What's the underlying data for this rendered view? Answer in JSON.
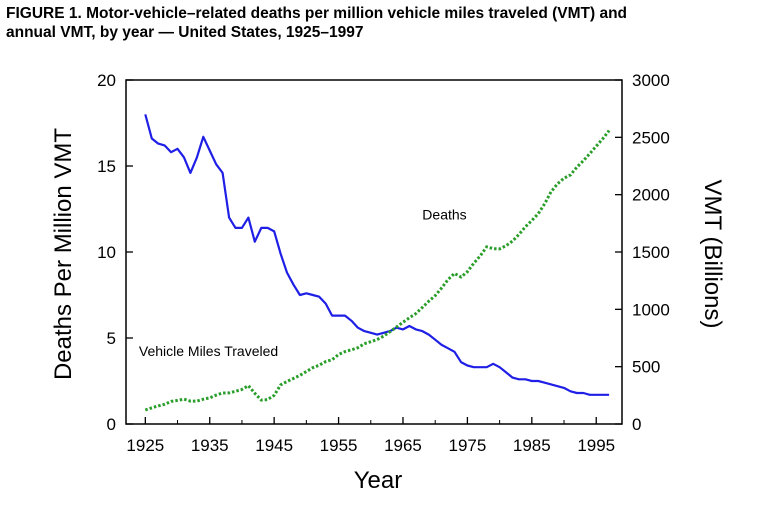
{
  "figure": {
    "title_line1": "FIGURE 1. Motor-vehicle–related deaths per million vehicle miles traveled (VMT) and",
    "title_line2": "annual VMT, by year — United States, 1925–1997"
  },
  "chart_data": {
    "type": "line",
    "title": "FIGURE 1. Motor-vehicle–related deaths per million vehicle miles traveled (VMT) and annual VMT, by year — United States, 1925–1997",
    "xlabel": "Year",
    "ylabel_left": "Deaths Per Million VMT",
    "ylabel_right": "VMT (Billions)",
    "xlim": [
      1922,
      1999
    ],
    "ylim_left": [
      0,
      20
    ],
    "ylim_right": [
      0,
      3000
    ],
    "x_ticks": [
      1925,
      1935,
      1945,
      1955,
      1965,
      1975,
      1985,
      1995
    ],
    "x_tick_labels": [
      "1925",
      "1935",
      "1945",
      "1955",
      "1965",
      "1975",
      "1985",
      "1995"
    ],
    "y_left_ticks": [
      0,
      5,
      10,
      15,
      20
    ],
    "y_left_tick_labels": [
      "0",
      "5",
      "10",
      "15",
      "20"
    ],
    "y_right_ticks": [
      0,
      500,
      1000,
      1500,
      2000,
      2500,
      3000
    ],
    "y_right_tick_labels": [
      "0",
      "500",
      "1000",
      "1500",
      "2000",
      "2500",
      "3000"
    ],
    "grid": false,
    "series": [
      {
        "name": "Deaths",
        "axis": "left",
        "color": "#1f1fe6",
        "style": "solid",
        "x": [
          1925,
          1926,
          1927,
          1928,
          1929,
          1930,
          1931,
          1932,
          1933,
          1934,
          1935,
          1936,
          1937,
          1938,
          1939,
          1940,
          1941,
          1942,
          1943,
          1944,
          1945,
          1946,
          1947,
          1948,
          1949,
          1950,
          1951,
          1952,
          1953,
          1954,
          1955,
          1956,
          1957,
          1958,
          1959,
          1960,
          1961,
          1962,
          1963,
          1964,
          1965,
          1966,
          1967,
          1968,
          1969,
          1970,
          1971,
          1972,
          1973,
          1974,
          1975,
          1976,
          1977,
          1978,
          1979,
          1980,
          1981,
          1982,
          1983,
          1984,
          1985,
          1986,
          1987,
          1988,
          1989,
          1990,
          1991,
          1992,
          1993,
          1994,
          1995,
          1996,
          1997
        ],
        "values": [
          18.0,
          16.6,
          16.3,
          16.2,
          15.8,
          16.0,
          15.5,
          14.6,
          15.5,
          16.7,
          15.9,
          15.1,
          14.6,
          12.0,
          11.4,
          11.4,
          12.0,
          10.6,
          11.4,
          11.4,
          11.2,
          9.9,
          8.8,
          8.1,
          7.5,
          7.6,
          7.5,
          7.4,
          7.0,
          6.3,
          6.3,
          6.3,
          6.0,
          5.6,
          5.4,
          5.3,
          5.2,
          5.3,
          5.4,
          5.6,
          5.5,
          5.7,
          5.5,
          5.4,
          5.2,
          4.9,
          4.6,
          4.4,
          4.2,
          3.6,
          3.4,
          3.3,
          3.3,
          3.3,
          3.5,
          3.3,
          3.0,
          2.7,
          2.6,
          2.6,
          2.5,
          2.5,
          2.4,
          2.3,
          2.2,
          2.1,
          1.9,
          1.8,
          1.8,
          1.7,
          1.7,
          1.7,
          1.7
        ]
      },
      {
        "name": "Vehicle Miles Traveled",
        "axis": "right",
        "color": "#2a9e2a",
        "style": "dotted",
        "x": [
          1925,
          1926,
          1927,
          1928,
          1929,
          1930,
          1931,
          1932,
          1933,
          1934,
          1935,
          1936,
          1937,
          1938,
          1939,
          1940,
          1941,
          1942,
          1943,
          1944,
          1945,
          1946,
          1947,
          1948,
          1949,
          1950,
          1951,
          1952,
          1953,
          1954,
          1955,
          1956,
          1957,
          1958,
          1959,
          1960,
          1961,
          1962,
          1963,
          1964,
          1965,
          1966,
          1967,
          1968,
          1969,
          1970,
          1971,
          1972,
          1973,
          1974,
          1975,
          1976,
          1977,
          1978,
          1979,
          1980,
          1981,
          1982,
          1983,
          1984,
          1985,
          1986,
          1987,
          1988,
          1989,
          1990,
          1991,
          1992,
          1993,
          1994,
          1995,
          1996,
          1997
        ],
        "values": [
          122,
          141,
          158,
          172,
          197,
          206,
          216,
          200,
          200,
          216,
          228,
          252,
          270,
          271,
          285,
          302,
          334,
          268,
          208,
          213,
          250,
          341,
          371,
          398,
          424,
          458,
          491,
          513,
          544,
          561,
          606,
          631,
          647,
          665,
          700,
          718,
          737,
          767,
          805,
          846,
          888,
          926,
          964,
          1016,
          1071,
          1120,
          1186,
          1260,
          1313,
          1281,
          1328,
          1402,
          1467,
          1545,
          1529,
          1527,
          1555,
          1595,
          1653,
          1720,
          1775,
          1835,
          1921,
          2026,
          2096,
          2144,
          2172,
          2240,
          2296,
          2358,
          2423,
          2486,
          2560
        ]
      }
    ],
    "annotations": [
      {
        "text": "Deaths",
        "x": 1968.0,
        "y": 11.9,
        "axis": "left"
      },
      {
        "text": "Vehicle Miles Traveled",
        "x": 1924.0,
        "y": 3.95,
        "axis": "left"
      }
    ]
  }
}
